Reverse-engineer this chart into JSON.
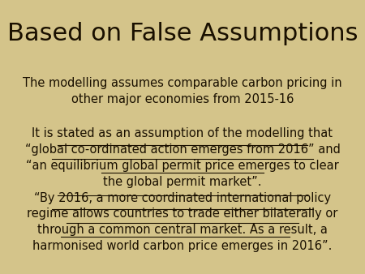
{
  "title": "Based on False Assumptions",
  "bg_color": "#d4c48a",
  "text_color": "#1a1000",
  "title_fontsize": 22,
  "body_fontsize": 10.5,
  "para1": "The modelling assumes comparable carbon pricing in\nother major economies from 2015-16",
  "para2_line0": "It is stated as an assumption of the modelling that",
  "para2_line1": "“global co-ordinated action emerges from 2016” and",
  "para2_line2": "“an equilibrium global permit price emerges to clear",
  "para2_line3": "the global permit market”.",
  "para3_line0": "“By 2016, a more coordinated international policy",
  "para3_line1": "regime allows countries to trade either bilaterally or",
  "para3_line2": "through a common central market. As a result, a",
  "para3_line3": "harmonised world carbon price emerges in 2016”."
}
